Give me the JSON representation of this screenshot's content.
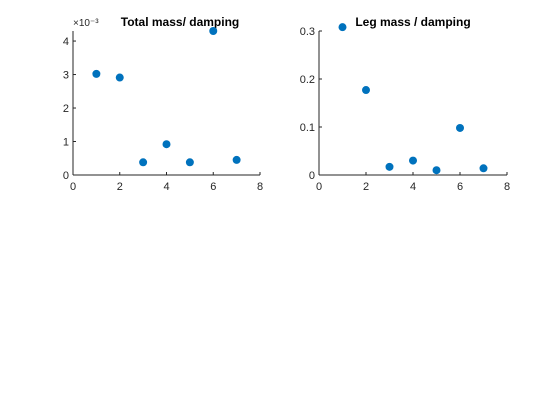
{
  "figure": {
    "background": "#ffffff",
    "marker_color": "#0072BD"
  },
  "chart_data": [
    {
      "type": "scatter",
      "title": "Total mass/ damping",
      "xlabel": "",
      "ylabel": "",
      "xlim": [
        0,
        8
      ],
      "ylim": [
        0,
        4.3
      ],
      "x_ticks": [
        0,
        2,
        4,
        6,
        8
      ],
      "y_ticks": [
        0,
        1,
        2,
        3,
        4
      ],
      "y_exponent_label": "×10⁻³",
      "grid": false,
      "series": [
        {
          "x": [
            1,
            2,
            3,
            4,
            5,
            6,
            7
          ],
          "y": [
            3.02,
            2.91,
            0.38,
            0.92,
            0.38,
            4.3,
            0.45
          ]
        }
      ]
    },
    {
      "type": "scatter",
      "title": "Leg mass / damping",
      "xlabel": "",
      "ylabel": "",
      "xlim": [
        0,
        8
      ],
      "ylim": [
        0,
        0.3
      ],
      "x_ticks": [
        0,
        2,
        4,
        6,
        8
      ],
      "y_ticks": [
        0,
        0.1,
        0.2,
        0.3
      ],
      "grid": false,
      "series": [
        {
          "x": [
            1,
            2,
            3,
            4,
            5,
            6,
            7
          ],
          "y": [
            0.308,
            0.177,
            0.017,
            0.03,
            0.01,
            0.098,
            0.014
          ]
        }
      ]
    }
  ]
}
